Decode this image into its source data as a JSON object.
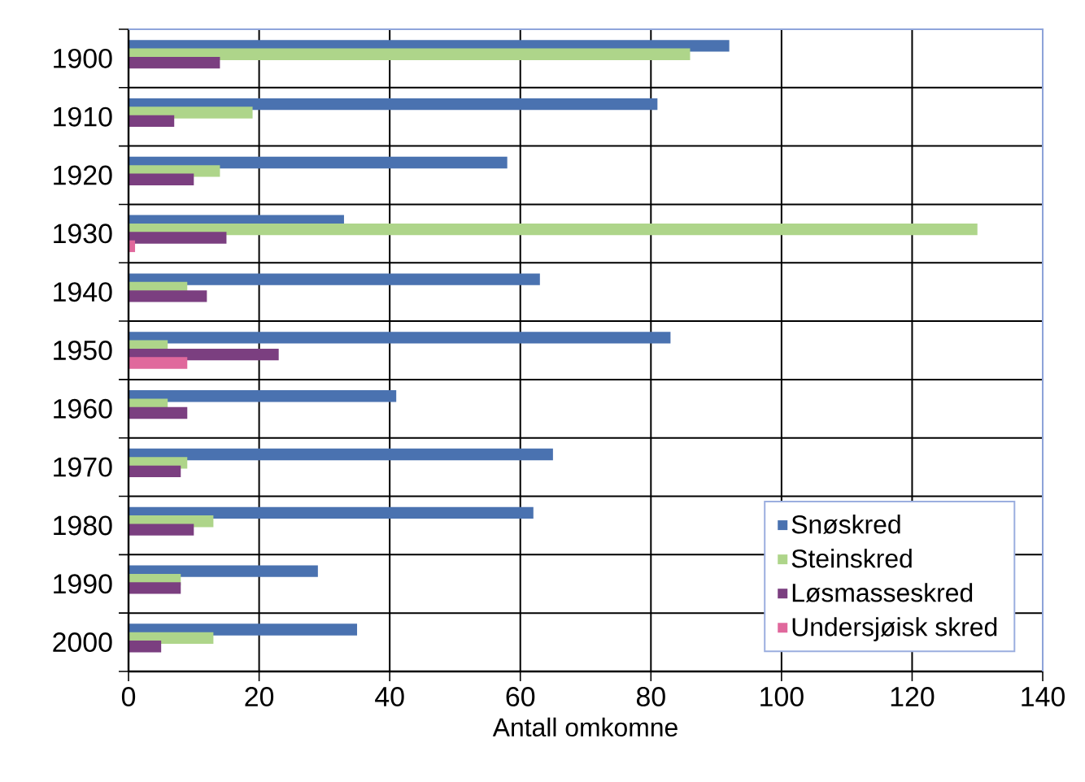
{
  "chart_data": {
    "type": "bar",
    "orientation": "horizontal",
    "xlabel": "Antall omkomne",
    "categories": [
      "1900",
      "1910",
      "1920",
      "1930",
      "1940",
      "1950",
      "1960",
      "1970",
      "1980",
      "1990",
      "2000"
    ],
    "series": [
      {
        "name": "Snøskred",
        "color": "#4a72b0",
        "values": [
          92,
          81,
          58,
          33,
          63,
          83,
          41,
          65,
          62,
          29,
          35
        ]
      },
      {
        "name": "Steinskred",
        "color": "#aed58a",
        "values": [
          86,
          19,
          14,
          130,
          9,
          6,
          6,
          9,
          13,
          8,
          13
        ]
      },
      {
        "name": "Løsmasseskred",
        "color": "#7b3f80",
        "values": [
          14,
          7,
          10,
          15,
          12,
          23,
          9,
          8,
          10,
          8,
          5
        ]
      },
      {
        "name": "Undersjøisk skred",
        "color": "#e0689c",
        "values": [
          0,
          0,
          0,
          1,
          0,
          9,
          0,
          0,
          0,
          0,
          0
        ]
      }
    ],
    "xlim": [
      0,
      140
    ],
    "xticks": [
      0,
      20,
      40,
      60,
      80,
      100,
      120,
      140
    ],
    "grid": true,
    "legend": "bottom right"
  }
}
